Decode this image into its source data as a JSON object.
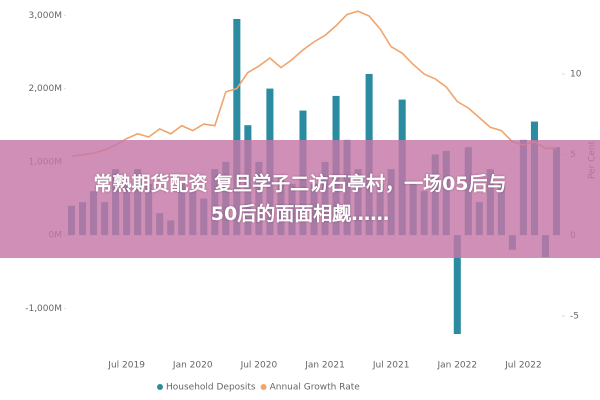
{
  "chart_data": {
    "type": "bar-line",
    "categories": [
      null,
      null,
      null,
      null,
      null,
      "Jul 2019",
      null,
      null,
      null,
      null,
      null,
      "Jan 2020",
      null,
      null,
      null,
      null,
      null,
      "Jul 2020",
      null,
      null,
      null,
      null,
      null,
      "Jan 2021",
      null,
      null,
      null,
      null,
      null,
      "Jul 2021",
      null,
      null,
      null,
      null,
      null,
      "Jan 2022",
      null,
      null,
      null,
      null,
      null,
      "Jul 2022",
      null,
      null,
      null
    ],
    "series": [
      {
        "name": "Household Deposits",
        "color": "#2b8ba0",
        "values": [
          400,
          450,
          600,
          450,
          900,
          700,
          900,
          700,
          300,
          200,
          700,
          600,
          500,
          900,
          1000,
          2950,
          1500,
          1000,
          2000,
          800,
          700,
          1700,
          700,
          1000,
          1900,
          1300,
          900,
          2200,
          700,
          900,
          1850,
          700,
          600,
          1100,
          1150,
          -1350,
          1200,
          450,
          900,
          700,
          -200,
          1300,
          1550,
          -300,
          1200
        ]
      },
      {
        "name": "Annual Growth Rate",
        "color": "#f2a46c",
        "axis": "y2",
        "values": [
          4.9,
          5.0,
          5.1,
          5.3,
          5.6,
          6.0,
          6.3,
          6.1,
          6.6,
          6.3,
          6.8,
          6.5,
          6.9,
          6.8,
          8.9,
          9.1,
          10.1,
          10.5,
          11.0,
          10.4,
          10.9,
          11.5,
          12.0,
          12.4,
          13.0,
          13.7,
          13.9,
          13.6,
          12.8,
          11.7,
          11.3,
          10.6,
          10.0,
          9.7,
          9.2,
          8.3,
          7.9,
          7.3,
          6.7,
          6.5,
          5.8,
          5.6,
          5.8,
          5.4,
          5.4
        ]
      }
    ],
    "ylim": [
      -1500,
      3100
    ],
    "yticks": [
      {
        "value": -1000,
        "label": "-1,000M"
      },
      {
        "value": 0,
        "label": "0M"
      },
      {
        "value": 1000,
        "label": "1,000M"
      },
      {
        "value": 2000,
        "label": "2,000M"
      },
      {
        "value": 3000,
        "label": "3,000M"
      }
    ],
    "y2lim": [
      -6.8,
      14.1
    ],
    "y2ticks": [
      -5,
      0,
      5,
      10
    ],
    "y2label": "Per Cent"
  },
  "overlay": {
    "lines": [
      "常熟期货配资 复旦学子二访石亭村，一场05后与",
      "50后的面面相觑……"
    ]
  }
}
